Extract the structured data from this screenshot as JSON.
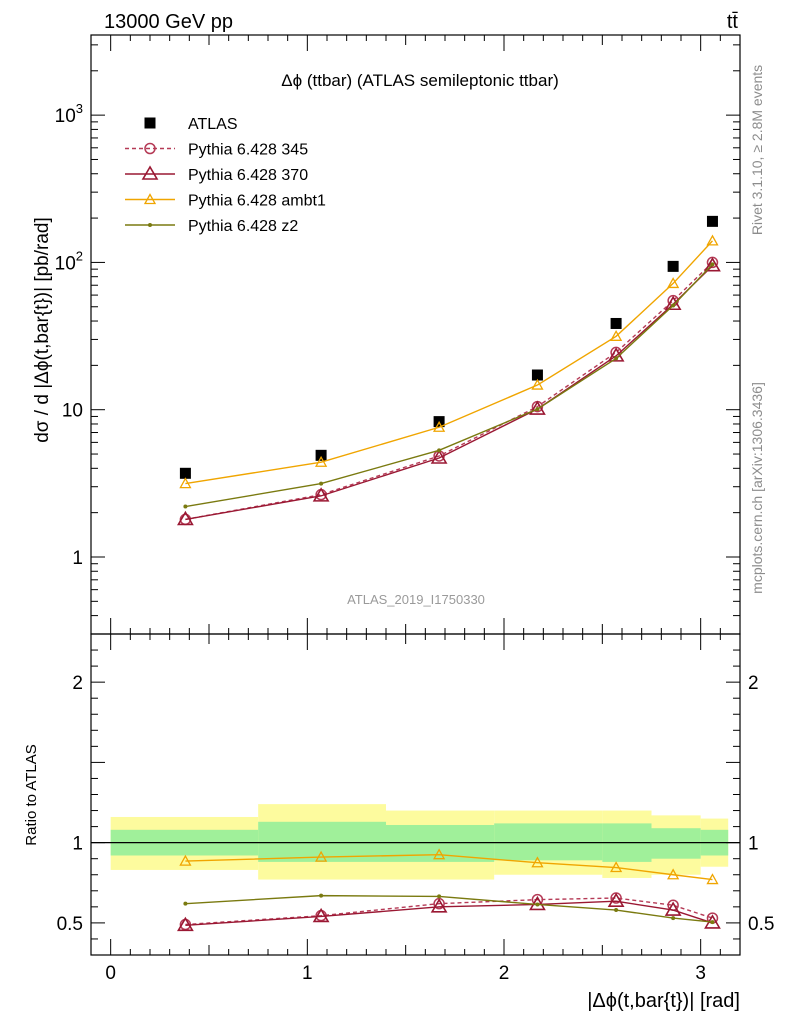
{
  "header": {
    "left": "13000 GeV pp",
    "right": "tt̄"
  },
  "side_labels": {
    "top": "Rivet 3.1.10, ≥ 2.8M events",
    "bottom": "mcplots.cern.ch [arXiv:1306.3436]"
  },
  "chart_data": [
    {
      "type": "scatter",
      "title": "Δϕ (ttbar) (ATLAS semileptonic ttbar)",
      "watermark": "ATLAS_2019_I1750330",
      "ylabel": "dσ / d |Δϕ(t,bar{t})| [pb/rad]",
      "yscale": "log",
      "ylim": [
        0.3,
        3500
      ],
      "xlim": [
        -0.1,
        3.2
      ],
      "y_ticks": [
        {
          "value": 1,
          "label": "1"
        },
        {
          "value": 10,
          "label": "10"
        },
        {
          "value": 100,
          "label": "10^2"
        },
        {
          "value": 1000,
          "label": "10^3"
        }
      ],
      "legend_position": "top-left",
      "x": [
        0.38,
        1.07,
        1.67,
        2.17,
        2.57,
        2.86,
        3.06
      ],
      "series": [
        {
          "name": "ATLAS",
          "color": "#000000",
          "marker": "filled-square",
          "line": "none",
          "values": [
            3.7,
            4.9,
            8.3,
            17.2,
            38.5,
            94,
            190
          ]
        },
        {
          "name": "Pythia 6.428 345",
          "color": "#b53a56",
          "marker": "open-circle",
          "line": "dashed",
          "values": [
            1.8,
            2.65,
            4.85,
            10.5,
            24.5,
            55,
            100
          ]
        },
        {
          "name": "Pythia 6.428 370",
          "color": "#9a1833",
          "marker": "open-triangle",
          "line": "solid",
          "values": [
            1.8,
            2.6,
            4.7,
            10.1,
            23.2,
            52,
            95
          ]
        },
        {
          "name": "Pythia 6.428 ambt1",
          "color": "#f0a500",
          "marker": "open-triangle-small",
          "line": "solid",
          "values": [
            3.15,
            4.4,
            7.6,
            14.7,
            31.5,
            72,
            140
          ]
        },
        {
          "name": "Pythia 6.428 z2",
          "color": "#7a7a10",
          "marker": "dot",
          "line": "solid",
          "values": [
            2.2,
            3.15,
            5.3,
            10.1,
            22.3,
            51,
            97
          ]
        }
      ]
    },
    {
      "type": "line",
      "ylabel": "Ratio to ATLAS",
      "xlabel": "|Δϕ(t,bar{t})| [rad]",
      "ylim": [
        0.3,
        2.3
      ],
      "xlim": [
        -0.1,
        3.2
      ],
      "x_ticks": [
        {
          "value": 0,
          "label": "0"
        },
        {
          "value": 1,
          "label": "1"
        },
        {
          "value": 2,
          "label": "2"
        },
        {
          "value": 3,
          "label": "3"
        }
      ],
      "y_ticks": [
        {
          "value": 0.5,
          "label": "0.5"
        },
        {
          "value": 1,
          "label": "1"
        },
        {
          "value": 2,
          "label": "2"
        }
      ],
      "bands": {
        "edges": [
          0,
          0.75,
          1.4,
          1.95,
          2.5,
          2.75,
          3.0,
          3.14
        ],
        "inner": [
          [
            0.92,
            1.08
          ],
          [
            0.88,
            1.13
          ],
          [
            0.88,
            1.11
          ],
          [
            0.89,
            1.12
          ],
          [
            0.88,
            1.12
          ],
          [
            0.9,
            1.09
          ],
          [
            0.92,
            1.08
          ]
        ],
        "outer": [
          [
            0.83,
            1.16
          ],
          [
            0.77,
            1.24
          ],
          [
            0.77,
            1.2
          ],
          [
            0.8,
            1.2
          ],
          [
            0.78,
            1.2
          ],
          [
            0.8,
            1.17
          ],
          [
            0.85,
            1.15
          ]
        ],
        "inner_color": "#a0f09a",
        "outer_color": "#fdfb9e"
      },
      "x": [
        0.38,
        1.07,
        1.67,
        2.17,
        2.57,
        2.86,
        3.06
      ],
      "series": [
        {
          "name": "Pythia 6.428 345",
          "color": "#b53a56",
          "marker": "open-circle",
          "line": "dashed",
          "values": [
            0.49,
            0.545,
            0.62,
            0.645,
            0.655,
            0.61,
            0.53
          ]
        },
        {
          "name": "Pythia 6.428 370",
          "color": "#9a1833",
          "marker": "open-triangle",
          "line": "solid",
          "values": [
            0.485,
            0.54,
            0.6,
            0.615,
            0.635,
            0.58,
            0.5
          ]
        },
        {
          "name": "Pythia 6.428 ambt1",
          "color": "#f0a500",
          "marker": "open-triangle-small",
          "line": "solid",
          "values": [
            0.885,
            0.91,
            0.925,
            0.875,
            0.845,
            0.8,
            0.77
          ]
        },
        {
          "name": "Pythia 6.428 z2",
          "color": "#7a7a10",
          "marker": "dot",
          "line": "solid",
          "values": [
            0.62,
            0.67,
            0.665,
            0.615,
            0.58,
            0.53,
            0.505
          ]
        }
      ]
    }
  ]
}
